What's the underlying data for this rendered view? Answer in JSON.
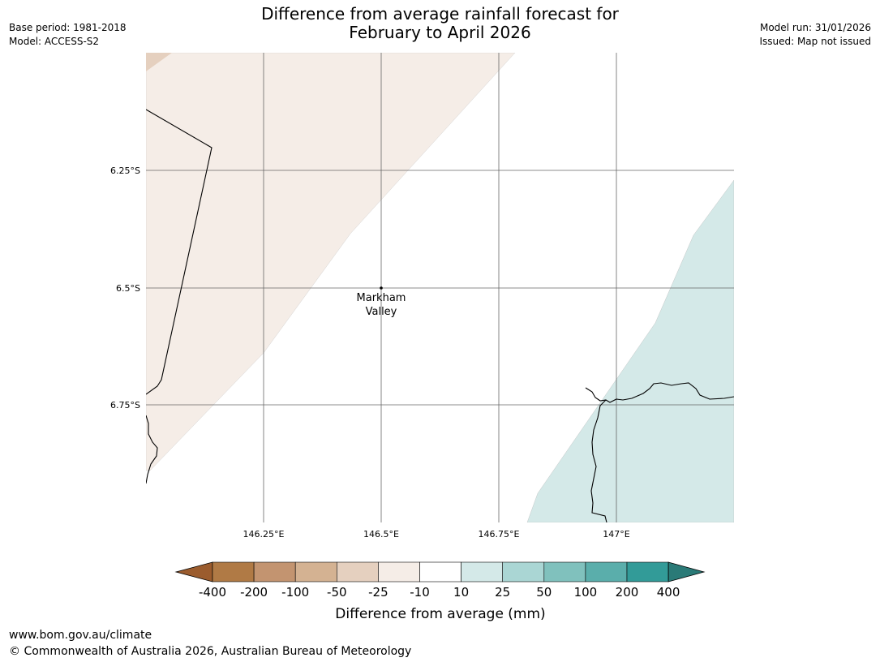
{
  "title": {
    "line1": "Difference from average rainfall forecast for",
    "line2": "February to April 2026"
  },
  "meta_left": {
    "base_period": "Base period: 1981-2018",
    "model": "Model: ACCESS-S2"
  },
  "meta_right": {
    "model_run": "Model run: 31/01/2026",
    "issued": "Issued: Map not issued"
  },
  "map": {
    "lat_labels": [
      "6.25°S",
      "6.5°S",
      "6.75°S"
    ],
    "lon_labels": [
      "146.25°E",
      "146.5°E",
      "146.75°E",
      "147°E"
    ],
    "place": {
      "name_line1": "Markham",
      "name_line2": "Valley"
    },
    "colors": {
      "light_brown_fill": "#f5ede7",
      "brown_corner_fill": "#e5d0bf",
      "teal_fill": "#d4e9e8",
      "grid": "#666666",
      "coast": "#000000"
    }
  },
  "colorbar": {
    "tick_labels": [
      "-400",
      "-200",
      "-100",
      "-50",
      "-25",
      "-10",
      "10",
      "25",
      "50",
      "100",
      "200",
      "400"
    ],
    "colors": [
      "#9b5c2e",
      "#b07a45",
      "#c39470",
      "#d4b292",
      "#e5d0bf",
      "#f5ede7",
      "#ffffff",
      "#d4e9e8",
      "#aad6d4",
      "#80c1bd",
      "#5aaeab",
      "#329b98",
      "#2a7a77"
    ],
    "label": "Difference from average (mm)"
  },
  "footer": {
    "url": "www.bom.gov.au/climate",
    "copyright": "© Commonwealth of Australia 2026, Australian Bureau of Meteorology"
  }
}
